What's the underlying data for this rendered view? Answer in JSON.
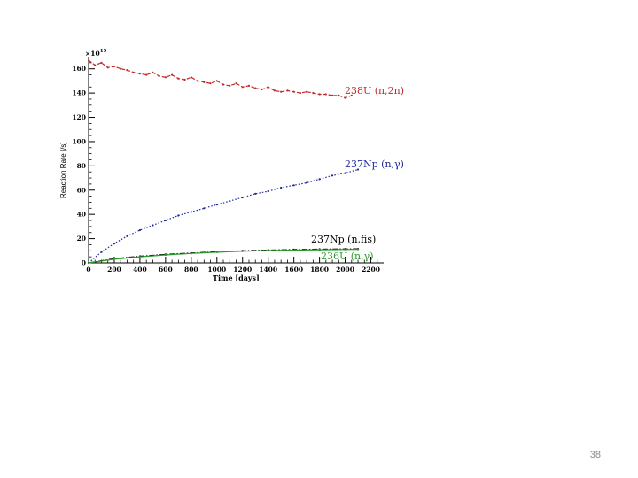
{
  "page_number": "38",
  "chart_data": {
    "type": "line",
    "ylabel": "Reaction Rate [/s]",
    "xlabel": "Time [days]",
    "y_multiplier": "×10",
    "y_multiplier_exp": "15",
    "xlim": [
      0,
      2300
    ],
    "ylim": [
      0,
      170
    ],
    "xticks": [
      0,
      200,
      400,
      600,
      800,
      1000,
      1200,
      1400,
      1600,
      1800,
      2000,
      2200
    ],
    "yticks": [
      0,
      20,
      40,
      60,
      80,
      100,
      120,
      140,
      160
    ],
    "grid": false,
    "legend": "none",
    "series": [
      {
        "name": "238U (n,2n)",
        "color": "#c0282b",
        "style": "dashed",
        "x": [
          0,
          50,
          100,
          150,
          200,
          250,
          300,
          350,
          400,
          450,
          500,
          550,
          600,
          650,
          700,
          750,
          800,
          850,
          900,
          950,
          1000,
          1050,
          1100,
          1150,
          1200,
          1250,
          1300,
          1350,
          1400,
          1450,
          1500,
          1550,
          1600,
          1650,
          1700,
          1750,
          1800,
          1850,
          1900,
          1950,
          2000,
          2050
        ],
        "values": [
          167,
          163,
          165,
          161,
          162,
          160,
          159,
          157,
          156,
          155,
          157,
          154,
          153,
          155,
          152,
          151,
          153,
          150,
          149,
          148,
          150,
          147,
          146,
          148,
          145,
          146,
          144,
          143,
          145,
          142,
          141,
          142,
          141,
          140,
          141,
          140,
          139,
          139,
          138,
          138,
          136,
          138
        ]
      },
      {
        "name": "237Np (n,γ)",
        "color": "#1f2a9a",
        "style": "dotted",
        "x": [
          0,
          100,
          200,
          300,
          400,
          500,
          600,
          700,
          800,
          900,
          1000,
          1100,
          1200,
          1300,
          1400,
          1500,
          1600,
          1700,
          1800,
          1900,
          2000,
          2100
        ],
        "values": [
          0,
          9,
          16,
          22,
          27,
          31,
          35,
          39,
          42,
          45,
          48,
          51,
          54,
          57,
          59,
          62,
          64,
          66,
          69,
          72,
          74,
          77
        ]
      },
      {
        "name": "237Np (n,fis)",
        "color": "#000000",
        "style": "dashdot",
        "x": [
          0,
          200,
          400,
          600,
          800,
          1000,
          1200,
          1400,
          1600,
          1800,
          2000,
          2100
        ],
        "values": [
          0,
          3.5,
          5.5,
          7,
          8.2,
          9.2,
          10,
          10.6,
          11,
          11.3,
          11.5,
          11.6
        ]
      },
      {
        "name": "236U (n,γ)",
        "color": "#2e9a2e",
        "style": "solid",
        "x": [
          0,
          200,
          400,
          600,
          800,
          1000,
          1200,
          1400,
          1600,
          1800,
          2000,
          2100
        ],
        "values": [
          0,
          3,
          5,
          6.6,
          7.8,
          8.8,
          9.6,
          10.2,
          10.6,
          10.9,
          11.1,
          11.2
        ]
      }
    ]
  }
}
